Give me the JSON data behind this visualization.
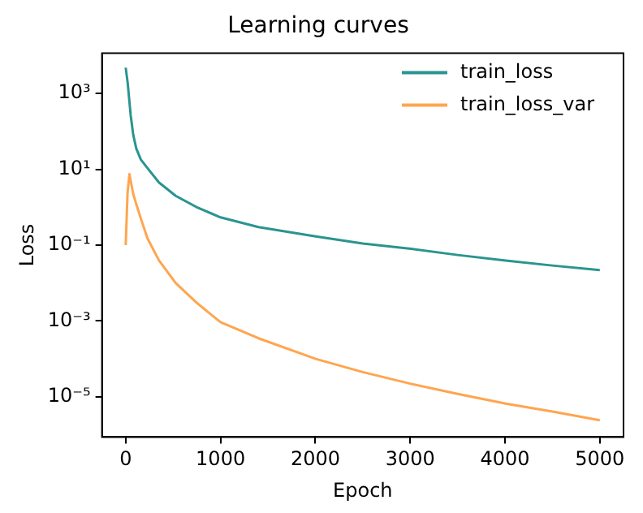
{
  "chart_data": {
    "type": "line",
    "title": "Learning curves",
    "xlabel": "Epoch",
    "ylabel": "Loss",
    "log": "y",
    "grid": false,
    "legend": "top right",
    "marker": "none",
    "line_style": "solid",
    "xlim": [
      -250,
      5250
    ],
    "xticks": [
      0,
      1000,
      2000,
      3000,
      4000,
      5000
    ],
    "ylim": [
      8.7e-07,
      11500
    ],
    "yticks": [
      {
        "value": 1000,
        "label": "10³"
      },
      {
        "value": 10,
        "label": "10¹"
      },
      {
        "value": 0.1,
        "label": "10⁻¹"
      },
      {
        "value": 0.001,
        "label": "10⁻³"
      },
      {
        "value": 1e-05,
        "label": "10⁻⁵"
      }
    ],
    "series": [
      {
        "name": "train_loss",
        "color": "#2a9490",
        "x": [
          0,
          20,
          53,
          80,
          112,
          160,
          230,
          350,
          527,
          750,
          1000,
          1400,
          2004,
          2500,
          3009,
          3500,
          4007,
          4500,
          5000
        ],
        "values": [
          4800,
          2000,
          260,
          80,
          35,
          18,
          10.7,
          4.5,
          2,
          1,
          0.54,
          0.3,
          0.17,
          0.11,
          0.08,
          0.055,
          0.039,
          0.029,
          0.022
        ]
      },
      {
        "name": "train_loss_var",
        "color": "#ffa54f",
        "x": [
          0,
          20,
          40,
          60,
          80,
          112,
          160,
          230,
          350,
          527,
          750,
          1000,
          1400,
          2004,
          2500,
          3009,
          3500,
          4007,
          4500,
          5000
        ],
        "values": [
          0.1,
          2.5,
          7.5,
          4,
          2.2,
          1.2,
          0.5,
          0.15,
          0.04,
          0.01,
          0.003,
          0.00093,
          0.00035,
          0.0001,
          4.5e-05,
          2.2e-05,
          1.2e-05,
          6.6e-06,
          4.1e-06,
          2.4e-06
        ]
      }
    ]
  }
}
